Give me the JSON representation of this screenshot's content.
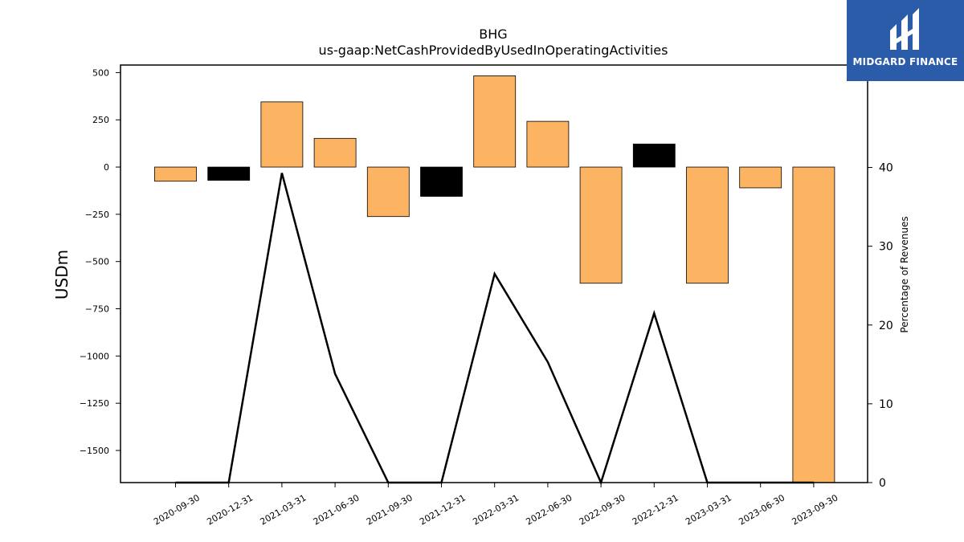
{
  "chart_data": {
    "type": "bar",
    "title": "BHG",
    "subtitle": "us-gaap:NetCashProvidedByUsedInOperatingActivities",
    "ylabel": "USDm",
    "y2label": "Percentage of Revenues",
    "ylim": [
      -1670,
      540
    ],
    "y2lim": [
      0,
      53
    ],
    "yticks": [
      500,
      250,
      0,
      -250,
      -500,
      -750,
      -1000,
      -1250,
      -1500
    ],
    "ytick_labels": [
      "500",
      "250",
      "0",
      "−250",
      "−500",
      "−750",
      "−1000",
      "−1250",
      "−1500"
    ],
    "y2ticks": [
      0,
      10,
      20,
      30,
      40
    ],
    "categories": [
      "2020-09-30",
      "2020-12-31",
      "2021-03-31",
      "2021-06-30",
      "2021-09-30",
      "2021-12-31",
      "2022-03-31",
      "2022-06-30",
      "2022-09-30",
      "2022-12-31",
      "2023-03-31",
      "2023-06-30",
      "2023-09-30"
    ],
    "values": [
      -75,
      -70,
      345,
      152,
      -262,
      -155,
      483,
      242,
      -615,
      122,
      -615,
      -110,
      -1670
    ],
    "bar_colors": [
      "#fdb462",
      "#000000",
      "#fdb462",
      "#fdb462",
      "#fdb462",
      "#000000",
      "#fdb462",
      "#fdb462",
      "#fdb462",
      "#000000",
      "#fdb462",
      "#fdb462",
      "#fdb462"
    ],
    "line_series": {
      "values": [
        0,
        0,
        39.3,
        13.8,
        0,
        0,
        26.5,
        15.3,
        0,
        21.5,
        0,
        0,
        0
      ],
      "color": "#000000"
    },
    "grid": false,
    "legend": "none"
  },
  "logo": {
    "text": "MIDGARD FINANCE",
    "background": "#2a5caa"
  }
}
